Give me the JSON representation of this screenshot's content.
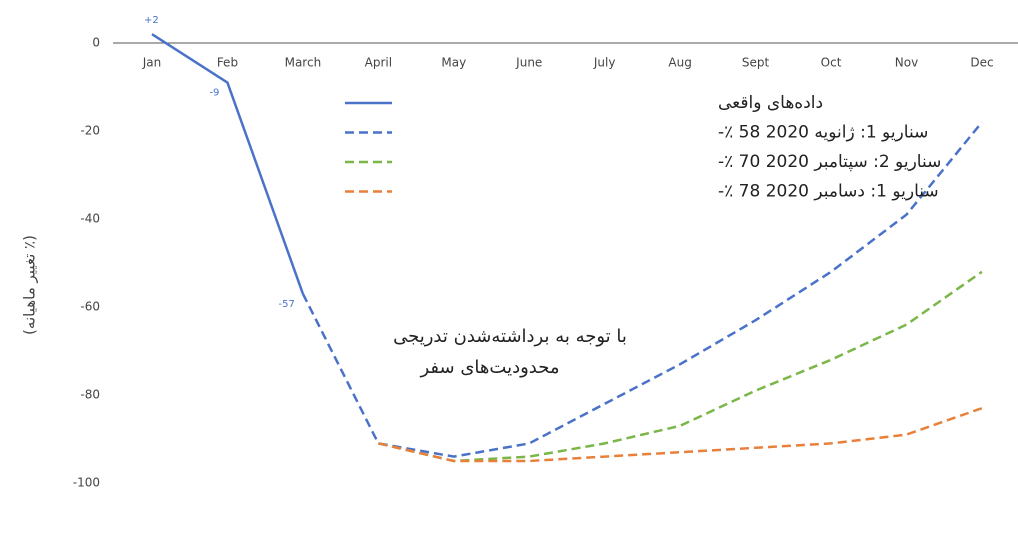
{
  "chart_data": {
    "type": "line",
    "y_label": "(٪ تغییر ماهیانه)",
    "annotation": [
      "با توجه به برداشته‌شدن تدریجی",
      "محدودیت‌های سفر"
    ],
    "categories": [
      "Jan",
      "Feb",
      "March",
      "April",
      "May",
      "June",
      "July",
      "Aug",
      "Sept",
      "Oct",
      "Nov",
      "Dec"
    ],
    "series": [
      {
        "name": "داده‌های واقعی",
        "color": "#4a72c9",
        "dash": false,
        "values": [
          2,
          -9,
          -57,
          null,
          null,
          null,
          null,
          null,
          null,
          null,
          null,
          null
        ],
        "value_labels": [
          "+2",
          "-9",
          "-57",
          null,
          null,
          null,
          null,
          null,
          null,
          null,
          null,
          null
        ]
      },
      {
        "name": "سناریو 1: ژانویه 2020 58 ٪-",
        "color": "#4a72c9",
        "dash": true,
        "values": [
          null,
          null,
          -57,
          -91,
          -94,
          -91,
          -82,
          -73,
          -63,
          -52,
          -39,
          -18
        ]
      },
      {
        "name": "سناریو 2: سپتامبر 2020 70 ٪-",
        "color": "#7ab648",
        "dash": true,
        "values": [
          null,
          null,
          null,
          -91,
          -95,
          -94,
          -91,
          -87,
          -79,
          -72,
          -64,
          -52
        ]
      },
      {
        "name": "سناریو 1: دسامبر 2020 78 ٪-",
        "color": "#e8803a",
        "dash": true,
        "values": [
          null,
          null,
          null,
          -91,
          -95,
          -95,
          -94,
          -93,
          -92,
          -91,
          -89,
          -83
        ]
      }
    ],
    "ylim": [
      -110,
      5
    ],
    "yticks": [
      0,
      -20,
      -40,
      -60,
      -80,
      -100
    ],
    "grid": false
  }
}
